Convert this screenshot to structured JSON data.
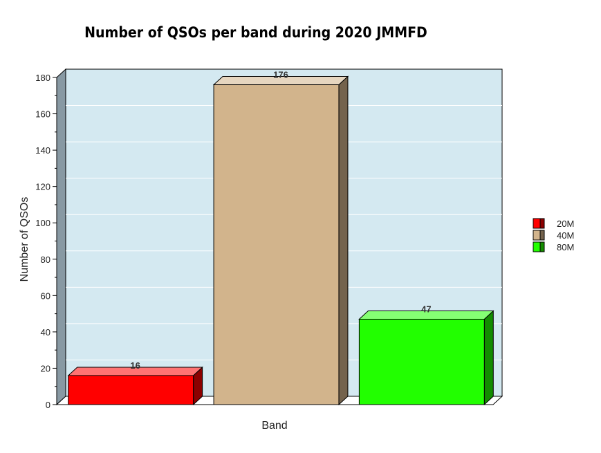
{
  "chart_data": {
    "type": "bar",
    "title": "Number of QSOs per band during 2020 JMMFD",
    "xlabel": "Band",
    "ylabel": "Number of QSOs",
    "ylim": [
      0,
      180
    ],
    "yticks": [
      0,
      20,
      40,
      60,
      80,
      100,
      120,
      140,
      160,
      180
    ],
    "grid": true,
    "legend_position": "right",
    "series": [
      {
        "name": "20M",
        "value": 16,
        "label": "16",
        "color": "#ff0000"
      },
      {
        "name": "40M",
        "value": 176,
        "label": "176",
        "color": "#d2b48c"
      },
      {
        "name": "80M",
        "value": 47,
        "label": "47",
        "color": "#22ff00"
      }
    ]
  },
  "colors": {
    "plot_background": "#d4e9f1",
    "side_wall": "#8899a3",
    "grid": "#ffffff"
  }
}
